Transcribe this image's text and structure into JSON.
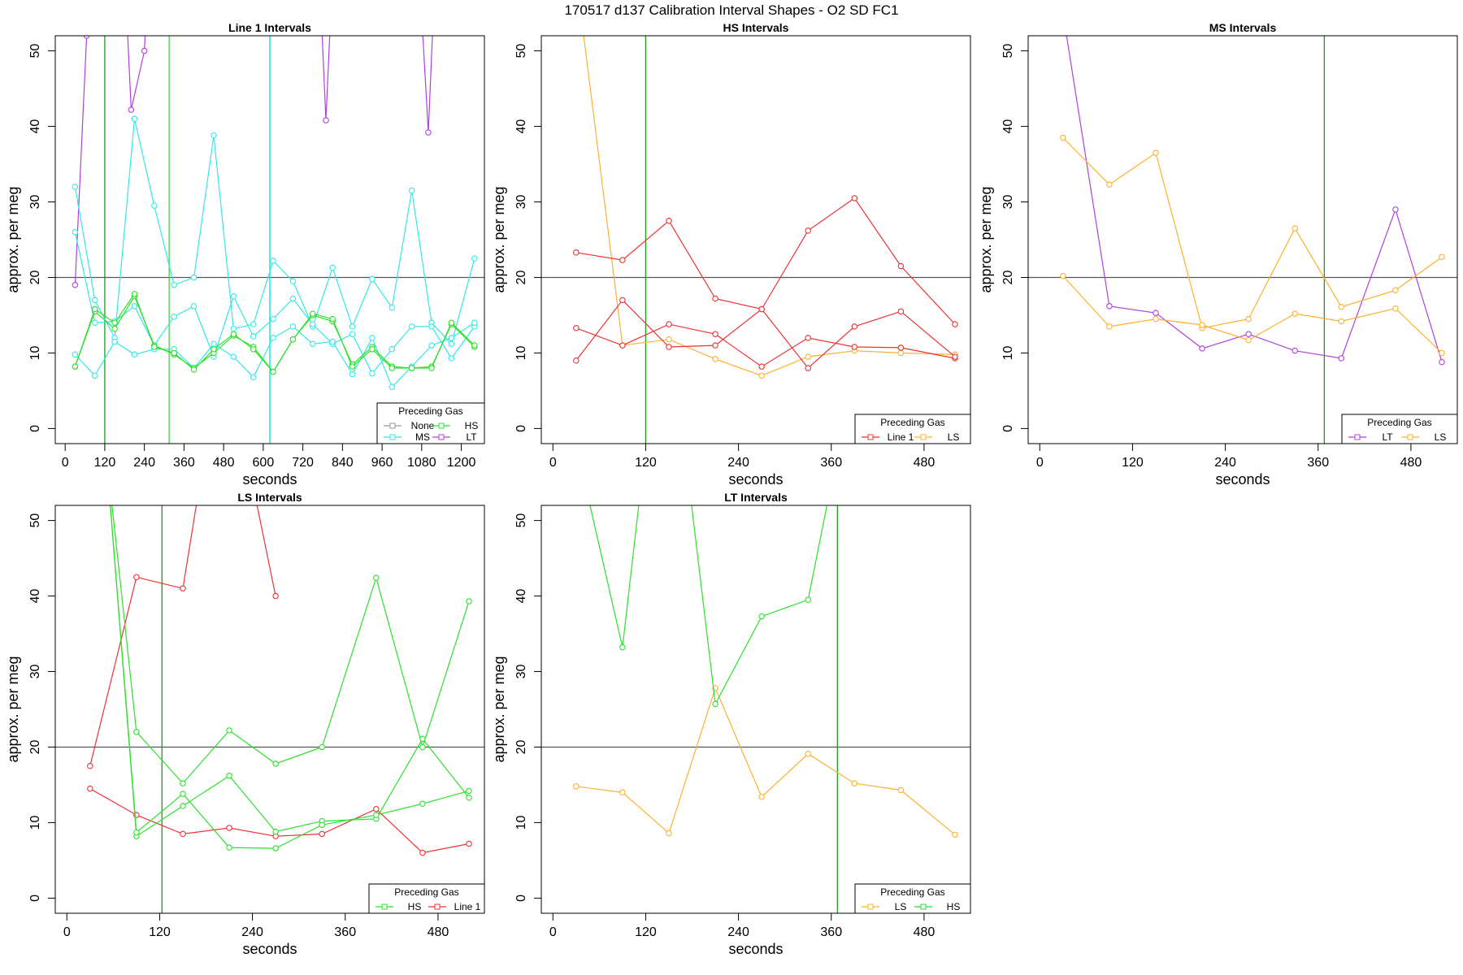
{
  "figure": {
    "title": "170517    d137    Calibration Interval Shapes - O2 SD FC1"
  },
  "chart_data": [
    {
      "type": "line",
      "title": "Line 1 Intervals",
      "xlabel": "seconds",
      "ylabel": "approx. per meg",
      "xlim": [
        -30,
        1270
      ],
      "ylim": [
        -2,
        52
      ],
      "xticks": [
        0,
        120,
        240,
        360,
        480,
        600,
        720,
        840,
        960,
        1080,
        1200
      ],
      "yticks": [
        0,
        10,
        20,
        30,
        40,
        50
      ],
      "hline": 20,
      "vlines": [
        {
          "x": 120,
          "color": "#1a9f1a"
        },
        {
          "x": 315,
          "color": "#33dd33"
        },
        {
          "x": 620,
          "color": "#00e0e0"
        }
      ],
      "legend": {
        "title": "Preceding Gas",
        "entries": [
          {
            "label": "None",
            "color": "#999999"
          },
          {
            "label": "HS",
            "color": "#2de02d"
          },
          {
            "label": "MS",
            "color": "#33e8e8"
          },
          {
            "label": "LT",
            "color": "#b040e0"
          }
        ]
      },
      "series": [
        {
          "name": "LT",
          "color": "#b040e0",
          "x": [
            30,
            65,
            90,
            170,
            200,
            240,
            260,
            760,
            790,
            820,
            1060,
            1100,
            1130
          ],
          "y": [
            19,
            52,
            70,
            70,
            42.2,
            50,
            70,
            70,
            40.8,
            70,
            70,
            39.2,
            70
          ]
        },
        {
          "name": "MS",
          "color": "#33e8e8",
          "x": [
            30,
            90,
            150,
            210,
            270,
            330,
            390,
            450,
            510,
            570,
            630,
            690,
            750,
            810,
            870,
            930,
            990,
            1050,
            1110,
            1170,
            1240
          ],
          "y": [
            32,
            17,
            12,
            41,
            29.5,
            19,
            20,
            38.8,
            13.2,
            13.8,
            22.2,
            19.5,
            13.5,
            21.3,
            13.5,
            19.8,
            16,
            31.5,
            14,
            11.2,
            22.5
          ]
        },
        {
          "name": "MS",
          "color": "#33e8e8",
          "x": [
            30,
            90,
            150,
            210,
            270,
            330,
            390,
            450,
            510,
            570,
            630,
            690,
            750,
            810,
            870,
            930,
            990,
            1050,
            1110,
            1170,
            1240
          ],
          "y": [
            26,
            14,
            14.2,
            16.2,
            11,
            14.8,
            16.2,
            9.5,
            17.5,
            12.2,
            14.5,
            17.2,
            13.8,
            11.2,
            12.5,
            7.3,
            10.5,
            13.5,
            13.5,
            9.3,
            13.5
          ]
        },
        {
          "name": "MS",
          "color": "#33e8e8",
          "x": [
            30,
            90,
            150,
            210,
            270,
            330,
            390,
            450,
            510,
            570,
            630,
            690,
            750,
            810,
            870,
            930,
            990,
            1050,
            1110,
            1170,
            1240
          ],
          "y": [
            9.8,
            7,
            11.5,
            9.8,
            10.5,
            10.5,
            8,
            11.2,
            9.5,
            6.8,
            12,
            13.5,
            11.2,
            11.5,
            7.2,
            12,
            5.5,
            8.2,
            11,
            12,
            14
          ]
        },
        {
          "name": "HS",
          "color": "#2de02d",
          "x": [
            30,
            90,
            150,
            210,
            270,
            330,
            390,
            450,
            510,
            570,
            630,
            690,
            750,
            810,
            870,
            930,
            990,
            1050,
            1110,
            1170,
            1240
          ],
          "y": [
            8.2,
            15.5,
            13.2,
            17.5,
            11,
            9.8,
            8,
            10,
            12.3,
            10.8,
            7.5,
            11.8,
            15,
            14.2,
            8.5,
            10.8,
            8.2,
            8,
            8.2,
            13.8,
            10.8
          ]
        },
        {
          "name": "HS",
          "color": "#2de02d",
          "x": [
            30,
            90,
            150,
            210,
            270,
            330,
            390,
            450,
            510,
            570,
            630,
            690,
            750,
            810,
            870,
            930,
            990,
            1050,
            1110,
            1170,
            1240
          ],
          "y": [
            8.2,
            15.8,
            14,
            17.8,
            10.8,
            10,
            7.8,
            10.5,
            12.5,
            10.5,
            7.5,
            11.8,
            15.2,
            14.5,
            8.2,
            10.5,
            8,
            8,
            8,
            14,
            11
          ]
        }
      ]
    },
    {
      "type": "line",
      "title": "HS Intervals",
      "xlabel": "seconds",
      "ylabel": "approx. per meg",
      "xlim": [
        -15,
        540
      ],
      "ylim": [
        -2,
        52
      ],
      "xticks": [
        0,
        120,
        240,
        360,
        480
      ],
      "yticks": [
        0,
        10,
        20,
        30,
        40,
        50
      ],
      "hline": 20,
      "vlines": [
        {
          "x": 120,
          "color": "#1a9f1a"
        }
      ],
      "legend": {
        "title": "Preceding Gas",
        "entries": [
          {
            "label": "Line 1",
            "color": "#ee3333"
          },
          {
            "label": "LS",
            "color": "#ffb030"
          }
        ]
      },
      "series": [
        {
          "name": "LS",
          "color": "#ffb030",
          "x": [
            30,
            90,
            150,
            210,
            270,
            330,
            390,
            450,
            520
          ],
          "y": [
            60,
            11,
            11.8,
            9.2,
            7,
            9.5,
            10.3,
            10,
            9.8
          ]
        },
        {
          "name": "Line 1",
          "color": "#ee3333",
          "x": [
            30,
            90,
            150,
            210,
            270,
            330,
            390,
            450,
            520
          ],
          "y": [
            23.3,
            22.3,
            27.5,
            17.2,
            15.8,
            26.2,
            30.5,
            21.5,
            13.8
          ]
        },
        {
          "name": "Line 1",
          "color": "#ee3333",
          "x": [
            30,
            90,
            150,
            210,
            270,
            330,
            390,
            450,
            520
          ],
          "y": [
            13.3,
            11,
            13.8,
            12.5,
            8.2,
            12,
            10.8,
            10.7,
            9.3
          ]
        },
        {
          "name": "Line 1",
          "color": "#ee3333",
          "x": [
            30,
            90,
            150,
            210,
            270,
            330,
            390,
            450,
            520
          ],
          "y": [
            9,
            17,
            10.8,
            11,
            15.8,
            8,
            13.5,
            15.5,
            9.5
          ]
        }
      ]
    },
    {
      "type": "line",
      "title": "MS Intervals",
      "xlabel": "seconds",
      "ylabel": "approx. per meg",
      "xlim": [
        -15,
        540
      ],
      "ylim": [
        -2,
        52
      ],
      "xticks": [
        0,
        120,
        240,
        360,
        480
      ],
      "yticks": [
        0,
        10,
        20,
        30,
        40,
        50
      ],
      "hline": 20,
      "vlines": [
        {
          "x": 368,
          "color": "#1a9f1a"
        }
      ],
      "legend": {
        "title": "Preceding Gas",
        "entries": [
          {
            "label": "LT",
            "color": "#b040e0"
          },
          {
            "label": "LS",
            "color": "#ffb030"
          }
        ]
      },
      "series": [
        {
          "name": "LT",
          "color": "#b040e0",
          "x": [
            30,
            90,
            150,
            210,
            270,
            330,
            390,
            460,
            520
          ],
          "y": [
            55,
            16.2,
            15.3,
            10.6,
            12.5,
            10.3,
            9.3,
            29,
            8.8
          ]
        },
        {
          "name": "LS",
          "color": "#ffb030",
          "x": [
            30,
            90,
            150,
            210,
            270,
            330,
            390,
            460,
            520
          ],
          "y": [
            38.5,
            32.3,
            36.5,
            13.3,
            14.5,
            26.5,
            16.1,
            18.3,
            22.7
          ]
        },
        {
          "name": "LS",
          "color": "#ffb030",
          "x": [
            30,
            90,
            150,
            210,
            270,
            330,
            390,
            460,
            520
          ],
          "y": [
            20.2,
            13.5,
            14.5,
            13.7,
            11.7,
            15.2,
            14.2,
            15.9,
            10
          ]
        }
      ]
    },
    {
      "type": "line",
      "title": "LS Intervals",
      "xlabel": "seconds",
      "ylabel": "approx. per meg",
      "xlim": [
        -15,
        540
      ],
      "ylim": [
        -2,
        52
      ],
      "xticks": [
        0,
        120,
        240,
        360,
        480
      ],
      "yticks": [
        0,
        10,
        20,
        30,
        40,
        50
      ],
      "hline": 20,
      "vlines": [
        {
          "x": 123,
          "color": "#1a9f1a"
        }
      ],
      "legend": {
        "title": "Preceding Gas",
        "entries": [
          {
            "label": "HS",
            "color": "#2de02d"
          },
          {
            "label": "Line 1",
            "color": "#ee3333"
          }
        ]
      },
      "series": [
        {
          "name": "Line 1",
          "color": "#ee3333",
          "x": [
            30,
            90,
            150,
            180,
            230,
            270
          ],
          "y": [
            17.5,
            42.5,
            41,
            60,
            60,
            40
          ]
        },
        {
          "name": "Line 1",
          "color": "#ee3333",
          "x": [
            30,
            90,
            150,
            210,
            270,
            330,
            400,
            460,
            520
          ],
          "y": [
            14.5,
            11,
            8.5,
            9.3,
            8.2,
            8.5,
            11.8,
            6,
            7.2
          ]
        },
        {
          "name": "HS",
          "color": "#2de02d",
          "x": [
            50,
            90,
            150,
            210,
            270,
            330,
            400,
            460,
            520
          ],
          "y": [
            60,
            22,
            15.2,
            22.2,
            17.8,
            20,
            42.4,
            20,
            39.3
          ]
        },
        {
          "name": "HS",
          "color": "#2de02d",
          "x": [
            50,
            90,
            150,
            210,
            270,
            330,
            400,
            460,
            520
          ],
          "y": [
            60,
            8.2,
            12.2,
            16.2,
            8.8,
            10.2,
            10.5,
            21.1,
            13.3
          ]
        },
        {
          "name": "HS",
          "color": "#2de02d",
          "x": [
            50,
            90,
            150,
            210,
            270,
            330,
            400,
            460,
            520
          ],
          "y": [
            60,
            8.7,
            13.8,
            6.7,
            6.6,
            9.7,
            11,
            12.5,
            14.2
          ]
        }
      ]
    },
    {
      "type": "line",
      "title": "LT Intervals",
      "xlabel": "seconds",
      "ylabel": "approx. per meg",
      "xlim": [
        -15,
        540
      ],
      "ylim": [
        -2,
        52
      ],
      "xticks": [
        0,
        120,
        240,
        360,
        480
      ],
      "yticks": [
        0,
        10,
        20,
        30,
        40,
        50
      ],
      "hline": 20,
      "vlines": [
        {
          "x": 368,
          "color": "#1a9f1a"
        }
      ],
      "legend": {
        "title": "Preceding Gas",
        "entries": [
          {
            "label": "LS",
            "color": "#ffb030"
          },
          {
            "label": "HS",
            "color": "#2de02d"
          }
        ]
      },
      "series": [
        {
          "name": "LS",
          "color": "#ffb030",
          "x": [
            30,
            90,
            150,
            210,
            270,
            330,
            390,
            450,
            520
          ],
          "y": [
            14.8,
            14,
            8.6,
            27.8,
            13.4,
            19.1,
            15.2,
            14.3,
            8.4
          ]
        },
        {
          "name": "HS",
          "color": "#2de02d",
          "x": [
            30,
            90,
            120,
            170,
            210,
            270,
            330,
            370
          ],
          "y": [
            60,
            33.2,
            60,
            60,
            25.7,
            37.3,
            39.5,
            60
          ]
        }
      ]
    }
  ]
}
